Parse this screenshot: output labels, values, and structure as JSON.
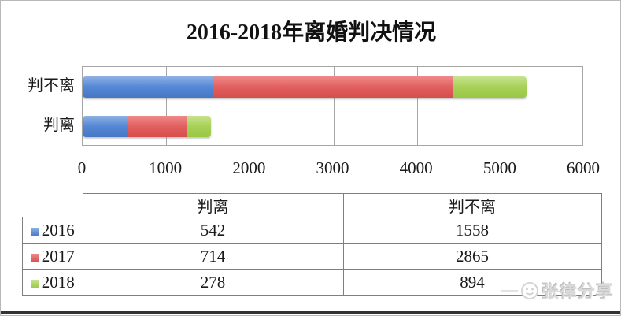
{
  "chart_data": {
    "type": "bar",
    "orientation": "horizontal",
    "stacked": true,
    "title": "2016-2018年离婚判决情况",
    "categories": [
      "判不离",
      "判离"
    ],
    "series": [
      {
        "name": "2016",
        "color": "#5588D6",
        "color_light": "#8FB2E2",
        "color_dark": "#4577C4",
        "values": [
          1558,
          542
        ]
      },
      {
        "name": "2017",
        "color": "#E26060",
        "color_light": "#F08A8A",
        "color_dark": "#D64E4E",
        "values": [
          2865,
          714
        ]
      },
      {
        "name": "2018",
        "color": "#A8D158",
        "color_light": "#C6E390",
        "color_dark": "#99C844",
        "values": [
          894,
          278
        ]
      }
    ],
    "xlabel": "",
    "ylabel": "",
    "xlim": [
      0,
      6000
    ],
    "xticks": [
      "0",
      "1000",
      "2000",
      "3000",
      "4000",
      "5000",
      "6000"
    ],
    "grid": true,
    "gridline_color": "#a6a6a6",
    "legend_position": "table-below"
  },
  "table": {
    "corner_label": "",
    "columns": [
      "判离",
      "判不离"
    ],
    "rows": [
      {
        "label": "2016",
        "cells": [
          "542",
          "1558"
        ]
      },
      {
        "label": "2017",
        "cells": [
          "714",
          "2865"
        ]
      },
      {
        "label": "2018",
        "cells": [
          "278",
          "894"
        ]
      }
    ]
  },
  "watermark": {
    "text": "张律分享"
  }
}
